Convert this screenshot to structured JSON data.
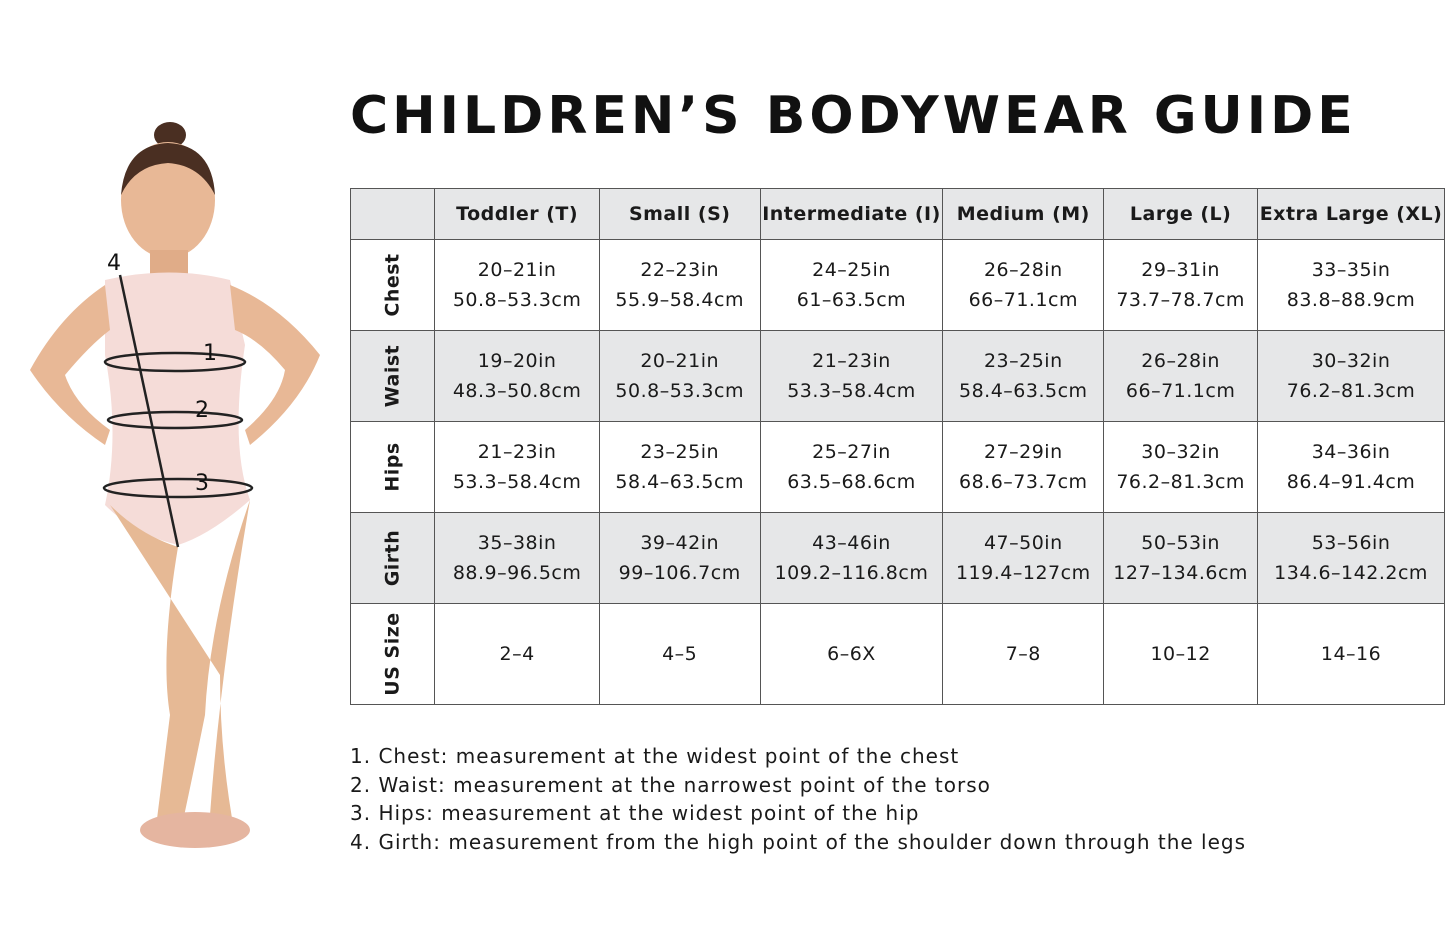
{
  "title": "CHILDREN’S BODYWEAR GUIDE",
  "figure_labels": [
    "1",
    "2",
    "3",
    "4"
  ],
  "table": {
    "columns": [
      "Toddler (T)",
      "Small (S)",
      "Intermediate (I)",
      "Medium (M)",
      "Large (L)",
      "Extra Large (XL)"
    ],
    "rows": [
      {
        "label": "Chest",
        "cells": [
          [
            "20–21in",
            "50.8–53.3cm"
          ],
          [
            "22–23in",
            "55.9–58.4cm"
          ],
          [
            "24–25in",
            "61–63.5cm"
          ],
          [
            "26–28in",
            "66–71.1cm"
          ],
          [
            "29–31in",
            "73.7–78.7cm"
          ],
          [
            "33–35in",
            "83.8–88.9cm"
          ]
        ]
      },
      {
        "label": "Waist",
        "cells": [
          [
            "19–20in",
            "48.3–50.8cm"
          ],
          [
            "20–21in",
            "50.8–53.3cm"
          ],
          [
            "21–23in",
            "53.3–58.4cm"
          ],
          [
            "23–25in",
            "58.4–63.5cm"
          ],
          [
            "26–28in",
            "66–71.1cm"
          ],
          [
            "30–32in",
            "76.2–81.3cm"
          ]
        ]
      },
      {
        "label": "Hips",
        "cells": [
          [
            "21–23in",
            "53.3–58.4cm"
          ],
          [
            "23–25in",
            "58.4–63.5cm"
          ],
          [
            "25–27in",
            "63.5–68.6cm"
          ],
          [
            "27–29in",
            "68.6–73.7cm"
          ],
          [
            "30–32in",
            "76.2–81.3cm"
          ],
          [
            "34–36in",
            "86.4–91.4cm"
          ]
        ]
      },
      {
        "label": "Girth",
        "cells": [
          [
            "35–38in",
            "88.9–96.5cm"
          ],
          [
            "39–42in",
            "99–106.7cm"
          ],
          [
            "43–46in",
            "109.2–116.8cm"
          ],
          [
            "47–50in",
            "119.4–127cm"
          ],
          [
            "50–53in",
            "127–134.6cm"
          ],
          [
            "53–56in",
            "134.6–142.2cm"
          ]
        ]
      },
      {
        "label": "US Size",
        "cells": [
          [
            "2–4"
          ],
          [
            "4–5"
          ],
          [
            "6–6X"
          ],
          [
            "7–8"
          ],
          [
            "10–12"
          ],
          [
            "14–16"
          ]
        ]
      }
    ]
  },
  "notes": [
    "1. Chest: measurement at the widest point of the chest",
    "2. Waist: measurement at the narrowest point of the torso",
    "3. Hips: measurement at the widest point of the hip",
    "4. Girth: measurement from the high point of the shoulder down through the legs"
  ]
}
